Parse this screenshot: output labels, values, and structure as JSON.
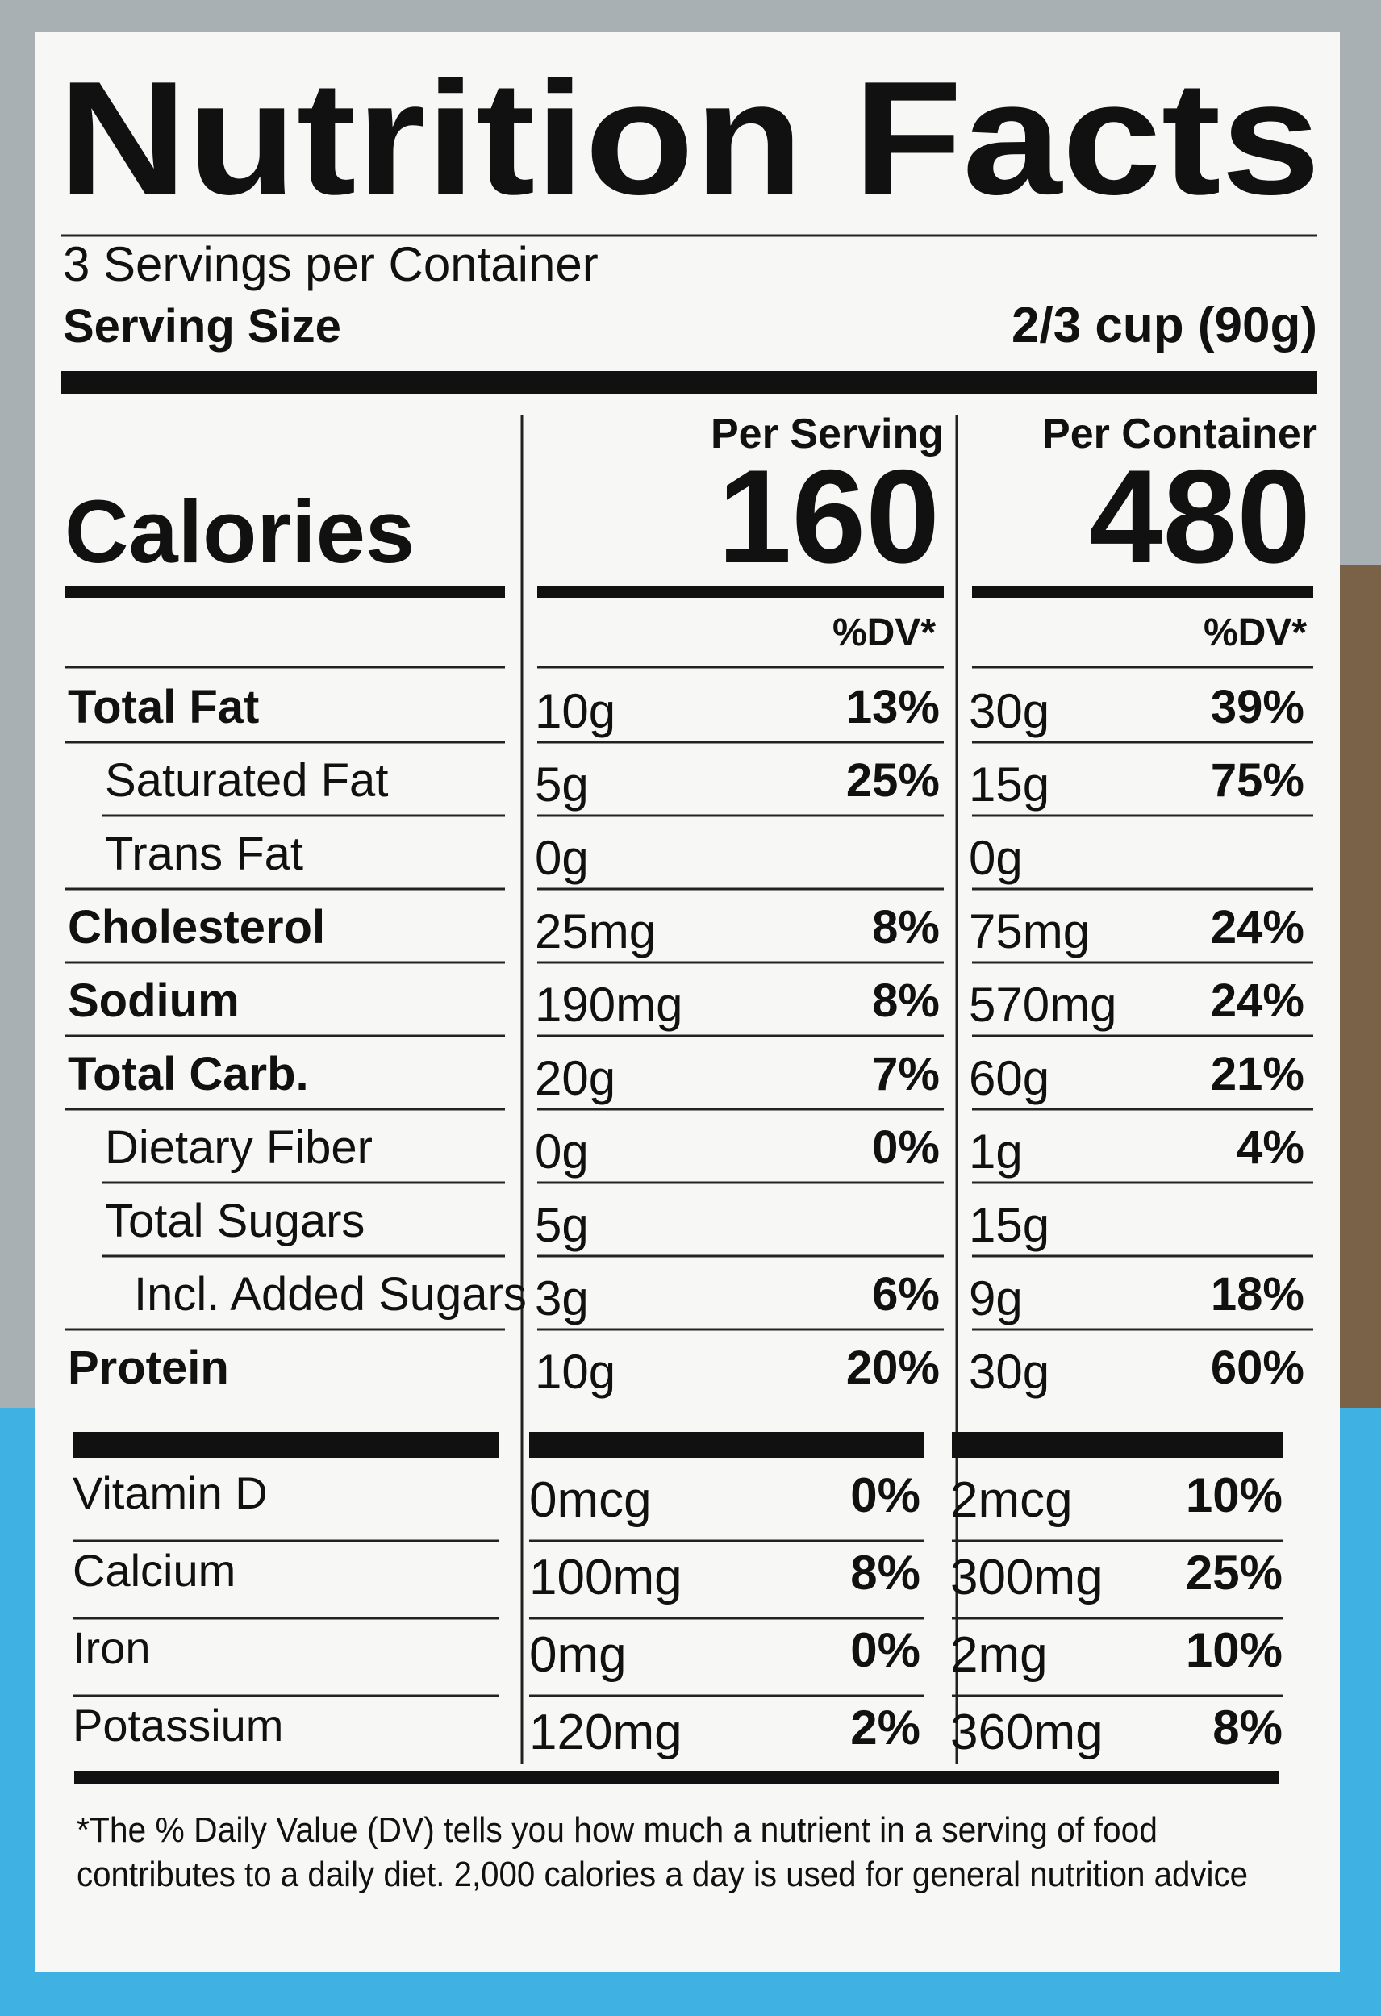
{
  "title": "Nutrition Facts",
  "servings": "3 Servings per Container",
  "serving_size": {
    "label": "Serving Size",
    "value": "2/3 cup (90g)"
  },
  "columns": [
    "Per Serving",
    "Per Container"
  ],
  "calories": {
    "label": "Calories",
    "per_serving": "160",
    "per_container": "480"
  },
  "dv_headers": [
    "%DV*",
    "%DV*"
  ],
  "rows": [
    {
      "name": "Total Fat",
      "per_serving": {
        "amount": "10g",
        "dv": "13%"
      },
      "per_container": {
        "amount": "30g",
        "dv": "39%"
      }
    },
    {
      "name": "Saturated Fat",
      "per_serving": {
        "amount": "5g",
        "dv": "25%"
      },
      "per_container": {
        "amount": "15g",
        "dv": "75%"
      }
    },
    {
      "name": "Trans Fat",
      "per_serving": {
        "amount": "0g"
      },
      "per_container": {
        "amount": "0g"
      }
    },
    {
      "name": "Cholesterol",
      "per_serving": {
        "amount": "25mg",
        "dv": "8%"
      },
      "per_container": {
        "amount": "75mg",
        "dv": "24%"
      }
    },
    {
      "name": "Sodium",
      "per_serving": {
        "amount": "190mg",
        "dv": "8%"
      },
      "per_container": {
        "amount": "570mg",
        "dv": "24%"
      }
    },
    {
      "name": "Total Carb.",
      "per_serving": {
        "amount": "20g",
        "dv": "7%"
      },
      "per_container": {
        "amount": "60g",
        "dv": "21%"
      }
    },
    {
      "name": "Dietary Fiber",
      "per_serving": {
        "amount": "0g",
        "dv": "0%"
      },
      "per_container": {
        "amount": "1g",
        "dv": "4%"
      }
    },
    {
      "name": "Total Sugars",
      "per_serving": {
        "amount": "5g"
      },
      "per_container": {
        "amount": "15g"
      }
    },
    {
      "name": "Incl. Added Sugars",
      "per_serving": {
        "amount": "3g",
        "dv": "6%"
      },
      "per_container": {
        "amount": "9g",
        "dv": "18%"
      }
    },
    {
      "name": "Protein",
      "per_serving": {
        "amount": "10g",
        "dv": "20%"
      },
      "per_container": {
        "amount": "30g",
        "dv": "60%"
      }
    }
  ],
  "vitamins": [
    {
      "name": "Vitamin D",
      "per_serving": {
        "amount": "0mcg",
        "dv": "0%"
      },
      "per_container": {
        "amount": "2mcg",
        "dv": "10%"
      }
    },
    {
      "name": "Calcium",
      "per_serving": {
        "amount": "100mg",
        "dv": "8%"
      },
      "per_container": {
        "amount": "300mg",
        "dv": "25%"
      }
    },
    {
      "name": "Iron",
      "per_serving": {
        "amount": "0mg",
        "dv": "0%"
      },
      "per_container": {
        "amount": "2mg",
        "dv": "10%"
      }
    },
    {
      "name": "Potassium",
      "per_serving": {
        "amount": "120mg",
        "dv": "2%"
      },
      "per_container": {
        "amount": "360mg",
        "dv": "8%"
      }
    }
  ],
  "footnote": [
    "*The % Daily Value (DV) tells you how much a nutrient in a serving of food",
    "contributes to a daily diet. 2,000 calories a day is used for general nutrition advice"
  ]
}
